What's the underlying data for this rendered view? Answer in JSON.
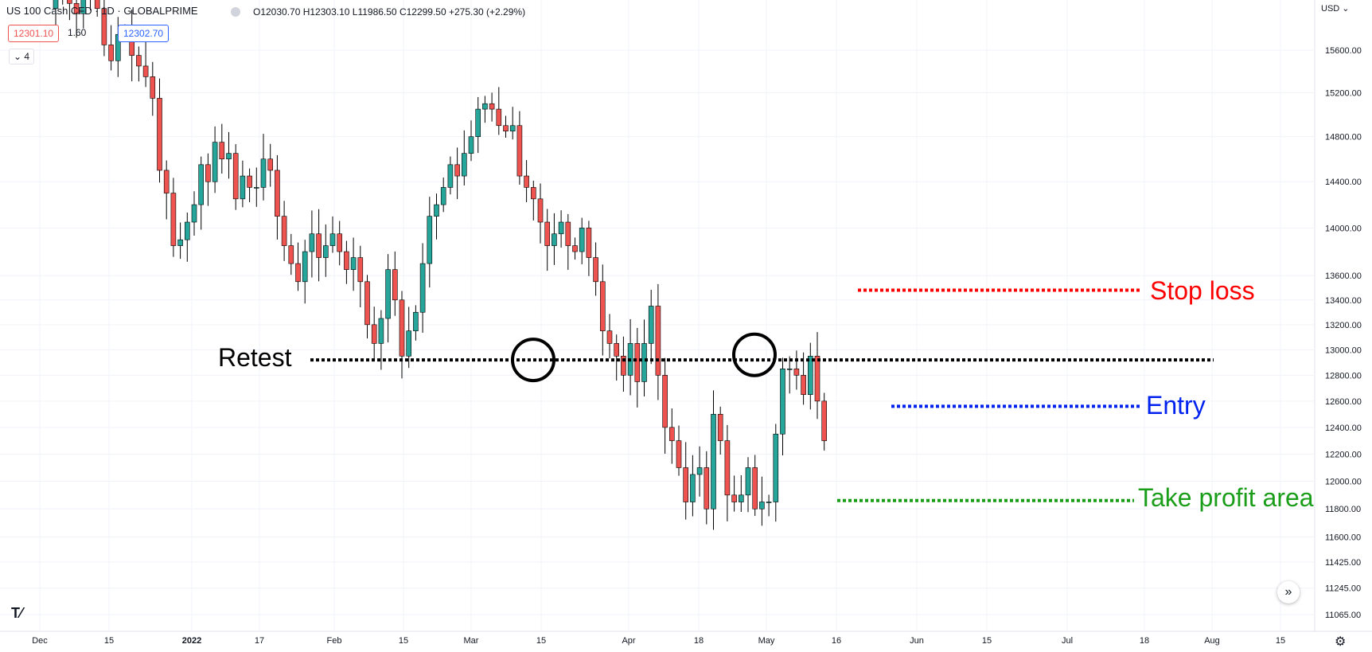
{
  "header": {
    "symbol": "US 100 Cash CFD · 1D · GLOBALPRIME",
    "ohlc": "O12030.70  H12303.10  L11986.50  C12299.50  +275.30 (+2.29%)",
    "sell_price": "12301.10",
    "spread": "1.60",
    "buy_price": "12302.70",
    "indicator_count": "4",
    "currency": "USD"
  },
  "colors": {
    "up": "#26a69a",
    "down": "#ef5350",
    "stop_loss": "#ff0000",
    "entry": "#0022ee",
    "take_profit": "#1a9e1a",
    "retest": "#000000"
  },
  "chart_data": {
    "type": "candlestick",
    "title": "US 100 Cash CFD · 1D · GLOBALPRIME",
    "y_scale": "log",
    "ylim": [
      10900,
      16300
    ],
    "y_ticks": [
      "15600.00",
      "15200.00",
      "14800.00",
      "14400.00",
      "14000.00",
      "13600.00",
      "13400.00",
      "13200.00",
      "13000.00",
      "12800.00",
      "12600.00",
      "12400.00",
      "12200.00",
      "12000.00",
      "11800.00",
      "11600.00",
      "11425.00",
      "11245.00",
      "11065.00"
    ],
    "x_ticks": [
      "Dec",
      "15",
      "2022",
      "17",
      "Feb",
      "15",
      "Mar",
      "15",
      "Apr",
      "18",
      "May",
      "16",
      "Jun",
      "15",
      "Jul",
      "18",
      "Aug",
      "15"
    ],
    "candles_close_approx": [
      16150,
      16250,
      16050,
      15950,
      16200,
      16400,
      16000,
      15650,
      15500,
      15750,
      15750,
      15550,
      15450,
      15350,
      15150,
      14500,
      14300,
      13850,
      13900,
      14050,
      14200,
      14550,
      14400,
      14750,
      14600,
      14650,
      14250,
      14450,
      14350,
      14350,
      14600,
      14500,
      14100,
      13850,
      13700,
      13550,
      13800,
      13950,
      13750,
      13850,
      13950,
      13800,
      13650,
      13750,
      13550,
      13200,
      13050,
      13250,
      13650,
      13400,
      12950,
      13150,
      13300,
      13700,
      14100,
      14200,
      14350,
      14550,
      14450,
      14650,
      14800,
      15050,
      15100,
      15050,
      14900,
      14850,
      14900,
      14450,
      14350,
      14250,
      14050,
      13850,
      13950,
      14050,
      13850,
      13800,
      14000,
      13750,
      13550,
      13150,
      13050,
      12950,
      12800,
      13050,
      12750,
      13050,
      13350,
      12800,
      12400,
      12300,
      12100,
      11850,
      12050,
      12100,
      11800,
      12500,
      12300,
      11900,
      11850,
      11900,
      12100,
      11800,
      11850,
      11850,
      12350,
      12850,
      12850,
      12800,
      12650,
      12950,
      12600,
      12300
    ],
    "annotations": [
      {
        "label": "Stop loss",
        "price": 13480
      },
      {
        "label": "Retest",
        "price": 12920
      },
      {
        "label": "Entry",
        "price": 12560
      },
      {
        "label": "Take profit area",
        "price": 11860
      }
    ]
  }
}
